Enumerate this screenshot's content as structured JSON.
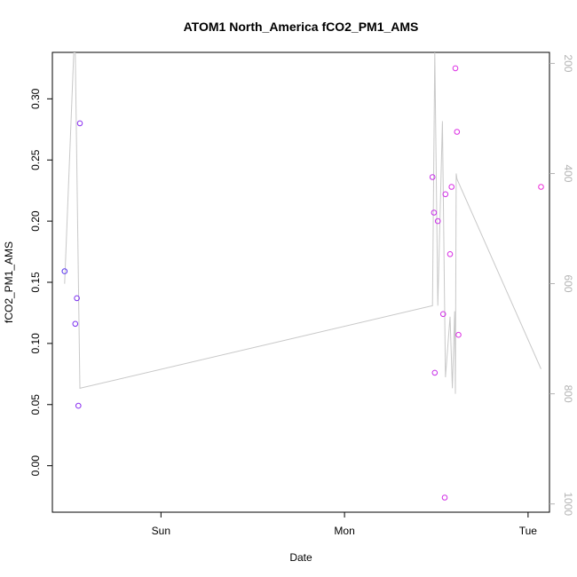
{
  "chart_data": {
    "type": "scatter",
    "title": "ATOM1 North_America fCO2_PM1_AMS",
    "xlabel": "Date",
    "ylabel": "fCO2_PM1_AMS",
    "x_axis": {
      "type": "date",
      "tick_labels": [
        "Sun",
        "Mon",
        "Tue"
      ],
      "tick_dates": [
        "Sun 00:00",
        "Mon 00:00",
        "Tue 00:00"
      ],
      "range_hours": [
        -14.2,
        50.8
      ]
    },
    "y_axis": {
      "ticks": [
        0.0,
        0.05,
        0.1,
        0.15,
        0.2,
        0.25,
        0.3
      ],
      "tick_labels": [
        "0.00",
        "0.05",
        "0.10",
        "0.15",
        "0.20",
        "0.25",
        "0.30"
      ],
      "ylim": [
        -0.038,
        0.338
      ]
    },
    "right_axis": {
      "description": "pressure (inverted)",
      "ticks": [
        200,
        400,
        600,
        800,
        1000
      ],
      "tick_labels": [
        "200",
        "400",
        "600",
        "800",
        "1000"
      ],
      "ylim": [
        1015,
        180
      ],
      "color": "#b3b3b3"
    },
    "points": [
      {
        "hours": -12.6,
        "value": 0.159,
        "color": "#5a35f0"
      },
      {
        "hours": -11.0,
        "value": 0.137,
        "color": "#7a2ef0"
      },
      {
        "hours": -11.2,
        "value": 0.116,
        "color": "#7a2ef0"
      },
      {
        "hours": -10.6,
        "value": 0.28,
        "color": "#8a2ef0"
      },
      {
        "hours": -10.8,
        "value": 0.049,
        "color": "#8a2ef0"
      },
      {
        "hours": 35.5,
        "value": 0.236,
        "color": "#c72ee8"
      },
      {
        "hours": 35.7,
        "value": 0.207,
        "color": "#c72ee8"
      },
      {
        "hours": 35.8,
        "value": 0.076,
        "color": "#c72ee8"
      },
      {
        "hours": 36.2,
        "value": 0.2,
        "color": "#cc2ee8"
      },
      {
        "hours": 36.9,
        "value": 0.124,
        "color": "#d12ee6"
      },
      {
        "hours": 37.2,
        "value": 0.222,
        "color": "#d12ee6"
      },
      {
        "hours": 37.1,
        "value": -0.026,
        "color": "#d12ee6"
      },
      {
        "hours": 37.8,
        "value": 0.173,
        "color": "#d82ee4"
      },
      {
        "hours": 38.0,
        "value": 0.228,
        "color": "#d82ee4"
      },
      {
        "hours": 38.5,
        "value": 0.325,
        "color": "#dc2ee4"
      },
      {
        "hours": 38.7,
        "value": 0.273,
        "color": "#dc2ee4"
      },
      {
        "hours": 38.9,
        "value": 0.107,
        "color": "#dc2ee4"
      },
      {
        "hours": 49.7,
        "value": 0.228,
        "color": "#ef2eda"
      }
    ],
    "pressure_line": {
      "color": "#c8c8c8",
      "x_hours": [
        -12.6,
        -11.4,
        -11.2,
        -10.6,
        35.5,
        35.8,
        36.2,
        36.8,
        37.2,
        37.8,
        38.1,
        38.4,
        38.5,
        38.6,
        38.7,
        49.7
      ],
      "pressure": [
        600,
        180,
        180,
        790,
        640,
        180,
        640,
        305,
        770,
        660,
        790,
        650,
        800,
        400,
        410,
        755
      ]
    }
  }
}
